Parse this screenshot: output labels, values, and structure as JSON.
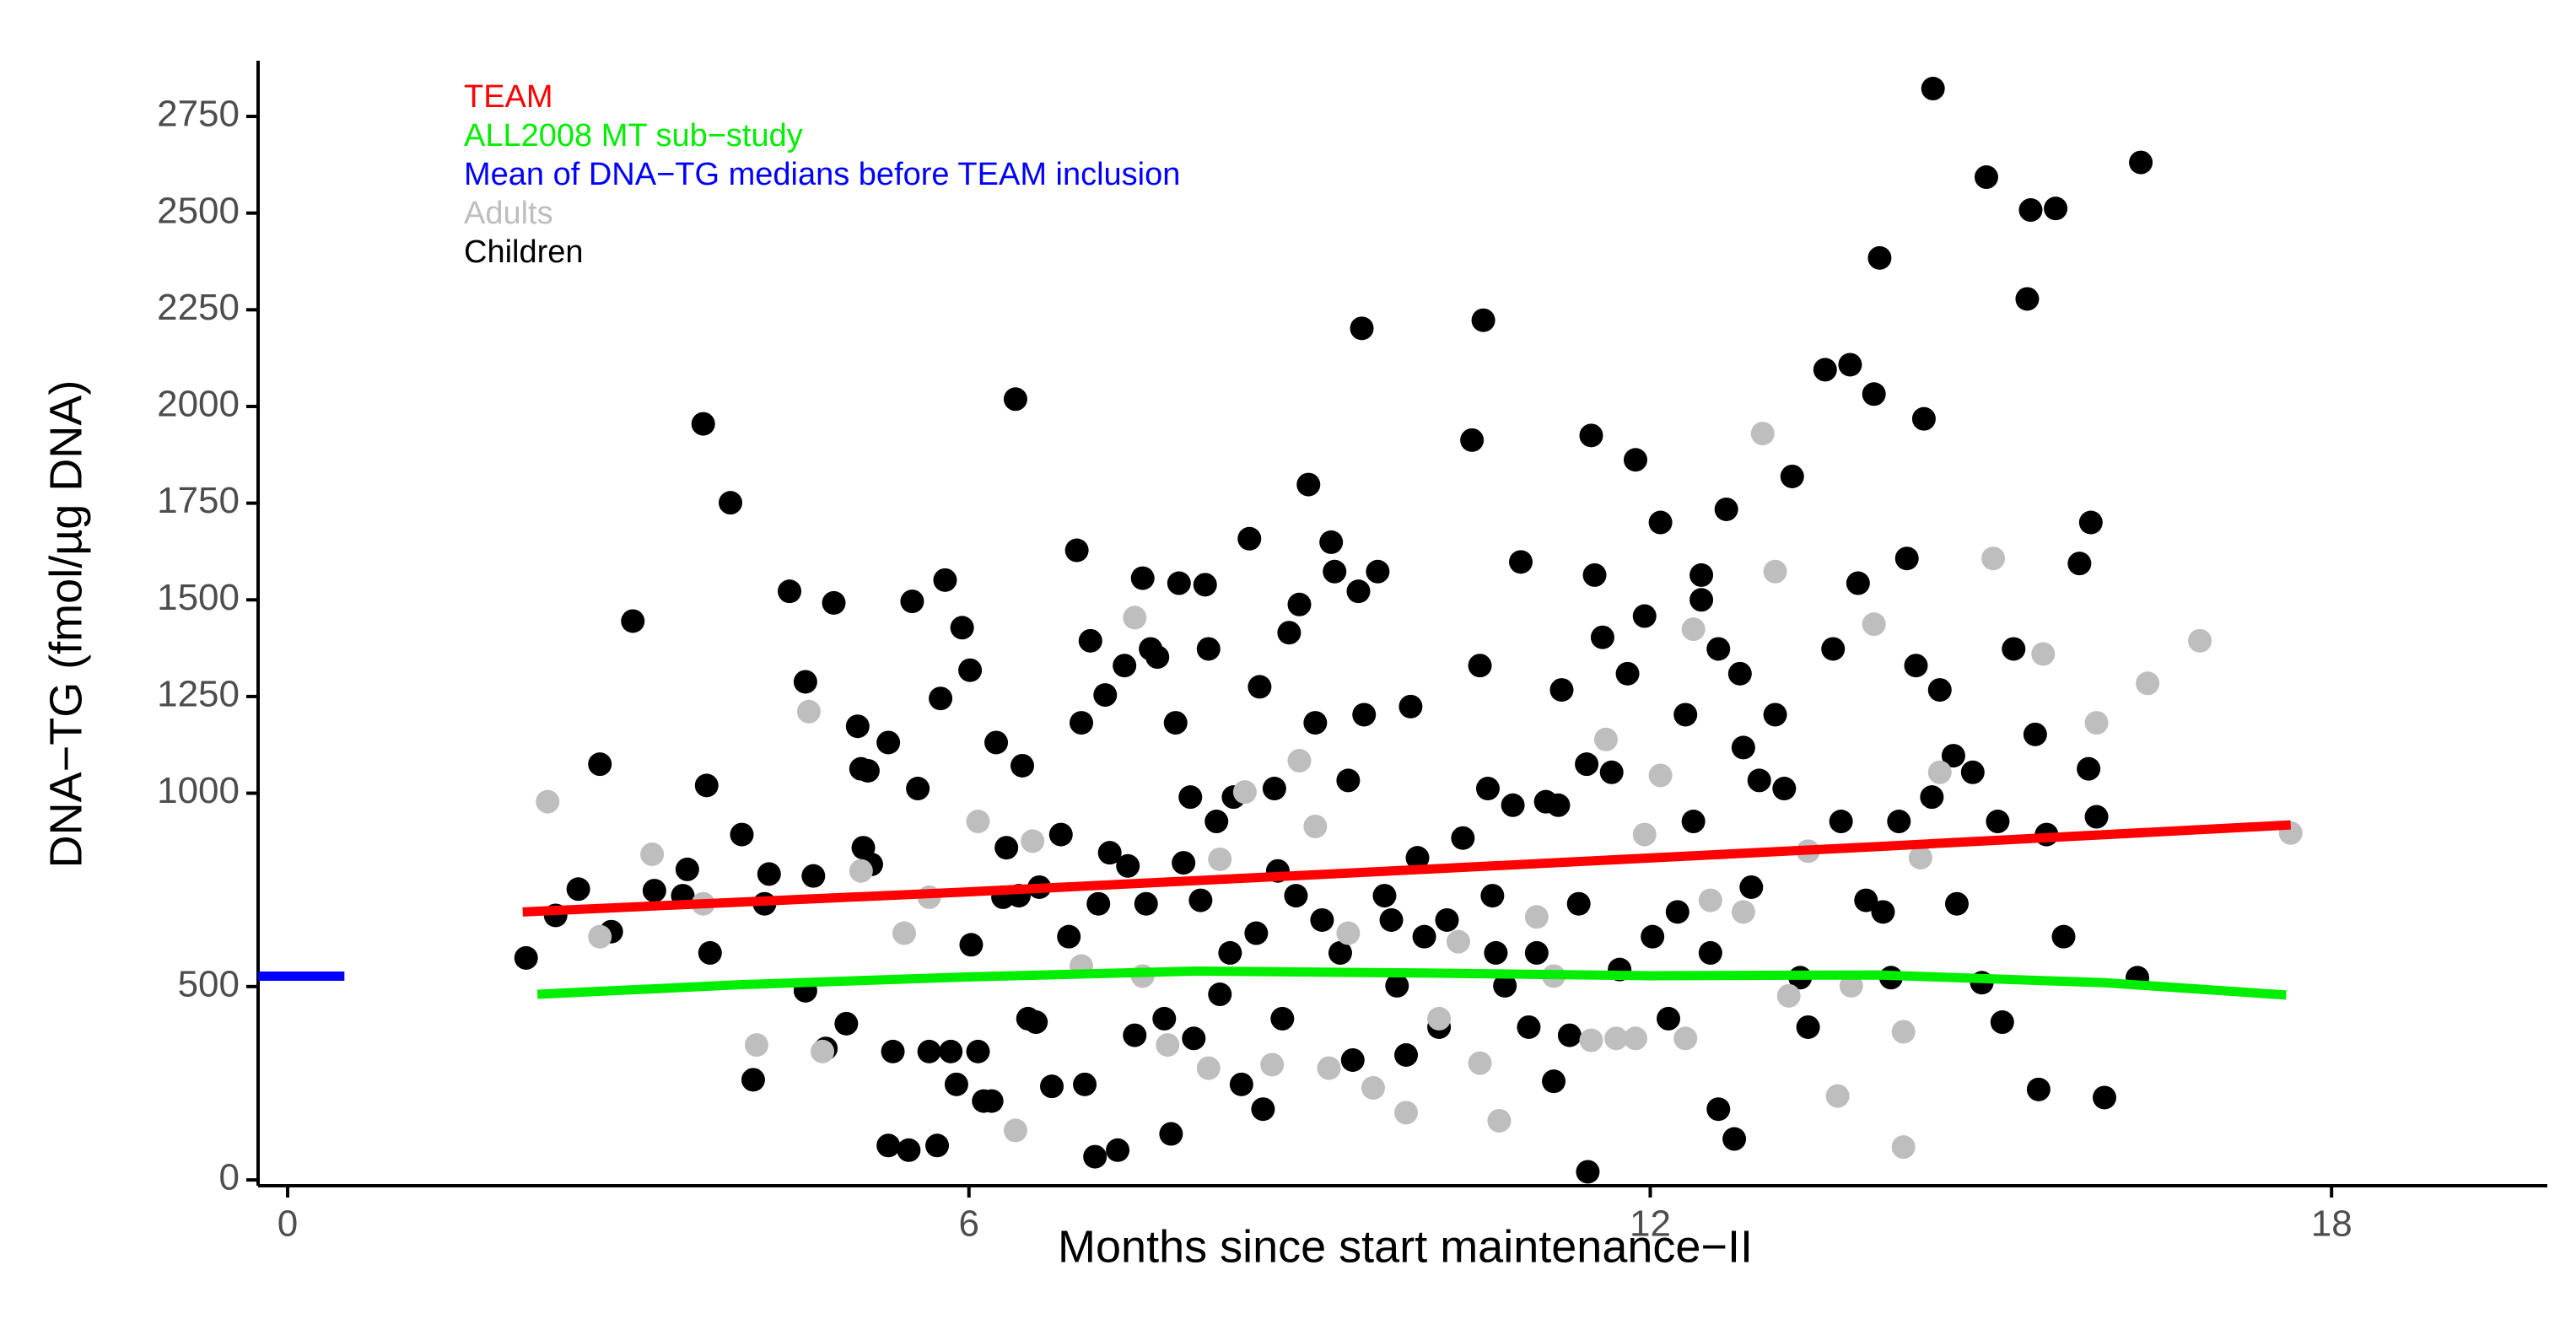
{
  "chart_data": {
    "type": "scatter",
    "xlabel": "Months since start maintenance−II",
    "ylabel": "DNA−TG (fmol/µg DNA)",
    "xlim": [
      -0.26,
      19.9
    ],
    "ylim": [
      -15,
      2894
    ],
    "xticks": [
      0,
      6,
      12,
      18
    ],
    "yticks": [
      0,
      500,
      1000,
      1250,
      1500,
      1750,
      2000,
      2250,
      2500,
      2750
    ],
    "legend": "top-left",
    "series": [
      {
        "name": "Children",
        "color": "#000000",
        "mode": "points",
        "x": [
          2.1,
          2.36,
          2.56,
          2.75,
          2.85,
          3.04,
          3.23,
          3.48,
          3.52,
          3.66,
          3.69,
          3.72,
          3.9,
          4.0,
          4.1,
          4.2,
          4.24,
          4.42,
          4.56,
          4.56,
          4.63,
          4.74,
          4.81,
          4.92,
          5.02,
          5.05,
          5.07,
          5.11,
          5.14,
          5.29,
          5.29,
          5.33,
          5.47,
          5.5,
          5.55,
          5.65,
          5.72,
          5.75,
          5.79,
          5.84,
          5.89,
          5.94,
          6.01,
          6.02,
          6.08,
          6.13,
          6.2,
          6.24,
          6.3,
          6.33,
          6.41,
          6.44,
          6.47,
          6.52,
          6.59,
          6.62,
          6.73,
          6.81,
          6.88,
          6.95,
          6.99,
          7.02,
          7.07,
          7.11,
          7.14,
          7.2,
          7.24,
          7.31,
          7.37,
          7.4,
          7.46,
          7.53,
          7.56,
          7.6,
          7.66,
          7.72,
          7.78,
          7.82,
          7.85,
          7.89,
          7.95,
          7.98,
          8.04,
          8.08,
          8.11,
          8.18,
          8.21,
          8.3,
          8.33,
          8.4,
          8.47,
          8.53,
          8.56,
          8.59,
          8.69,
          8.72,
          8.76,
          8.82,
          8.88,
          8.91,
          8.99,
          9.05,
          9.11,
          9.19,
          9.22,
          9.27,
          9.34,
          9.38,
          9.43,
          9.46,
          9.48,
          9.6,
          9.66,
          9.72,
          9.77,
          9.85,
          9.89,
          9.95,
          10.01,
          10.14,
          10.21,
          10.35,
          10.43,
          10.5,
          10.53,
          10.57,
          10.61,
          10.64,
          10.72,
          10.79,
          10.86,
          10.93,
          11.0,
          11.08,
          11.15,
          11.19,
          11.22,
          11.29,
          11.37,
          11.44,
          11.45,
          11.48,
          11.51,
          11.58,
          11.66,
          11.73,
          11.8,
          11.87,
          11.95,
          12.02,
          12.09,
          12.16,
          12.24,
          12.31,
          12.38,
          12.45,
          12.53,
          12.6,
          12.67,
          12.74,
          12.79,
          12.89,
          12.96,
          13.1,
          13.18,
          13.25,
          13.32,
          13.39,
          13.54,
          13.61,
          13.68,
          13.76,
          13.83,
          13.9,
          13.97,
          14.02,
          14.05,
          14.12,
          14.19,
          14.26,
          14.34,
          14.41,
          14.48,
          14.49,
          14.55,
          14.67,
          14.7,
          14.84,
          14.92,
          14.96,
          15.06,
          15.1,
          15.2,
          15.32,
          15.35,
          15.39,
          15.42,
          15.49,
          15.57,
          15.64,
          15.78,
          15.86,
          15.88,
          15.93,
          16.0,
          16.29,
          16.32,
          12.45,
          12.6,
          12.82
        ],
        "values": [
          574,
          684,
          752,
          1075,
          642,
          1445,
          748,
          735,
          803,
          1955,
          1020,
          587,
          1751,
          893,
          259,
          714,
          791,
          1522,
          1288,
          489,
          786,
          340,
          1492,
          404,
          1173,
          1063,
          859,
          1058,
          816,
          1131,
          89,
          332,
          77,
          1496,
          1012,
          332,
          89,
          1245,
          1551,
          332,
          247,
          1428,
          1318,
          608,
          332,
          204,
          204,
          1131,
          731,
          859,
          2019,
          735,
          1071,
          417,
          408,
          757,
          242,
          893,
          629,
          1628,
          1182,
          247,
          1394,
          60,
          714,
          1254,
          846,
          77,
          1330,
          812,
          374,
          1556,
          714,
          1373,
          1352,
          417,
          119,
          1182,
          1543,
          820,
          990,
          366,
          723,
          1539,
          1373,
          927,
          480,
          587,
          990,
          247,
          1658,
          638,
          1275,
          183,
          1012,
          799,
          417,
          1415,
          735,
          1488,
          1798,
          1182,
          672,
          1649,
          1573,
          587,
          1033,
          310,
          1522,
          2202,
          1203,
          1573,
          735,
          672,
          502,
          323,
          1224,
          833,
          629,
          395,
          672,
          884,
          1913,
          1330,
          2223,
          1012,
          735,
          587,
          502,
          969,
          1598,
          395,
          587,
          978,
          255,
          969,
          1267,
          374,
          714,
          1075,
          21,
          1925,
          1564,
          1403,
          1054,
          544,
          1309,
          1862,
          1458,
          629,
          1700,
          417,
          693,
          1203,
          927,
          1564,
          587,
          183,
          1734,
          106,
          1309,
          757,
          1033,
          1203,
          1012,
          1819,
          523,
          395,
          2095,
          1373,
          927,
          2108,
          1543,
          723,
          2032,
          2384,
          693,
          523,
          927,
          1607,
          1330,
          1968,
          990,
          2822,
          1267,
          1097,
          714,
          1054,
          510,
          2593,
          927,
          408,
          1373,
          2278,
          2508,
          1152,
          234,
          893,
          2512,
          629,
          1594,
          1063,
          1700,
          939,
          213,
          523,
          2631,
          1500,
          1373,
          1118
        ]
      },
      {
        "name": "Adults",
        "color": "#bebebe",
        "mode": "points",
        "x": [
          2.29,
          2.75,
          3.21,
          3.66,
          4.13,
          4.59,
          4.71,
          5.05,
          5.43,
          5.65,
          6.08,
          6.41,
          6.56,
          6.99,
          7.46,
          7.53,
          7.75,
          8.11,
          8.21,
          8.43,
          8.67,
          8.91,
          9.05,
          9.17,
          9.34,
          9.56,
          9.85,
          10.14,
          10.31,
          10.5,
          10.67,
          11.0,
          11.15,
          11.48,
          11.61,
          11.7,
          11.87,
          11.95,
          12.09,
          12.31,
          12.38,
          12.53,
          12.82,
          12.99,
          13.1,
          13.22,
          13.39,
          13.65,
          13.97,
          14.23,
          14.38,
          14.55,
          15.02,
          15.46,
          15.93,
          16.38,
          16.84,
          17.64,
          13.77,
          14.23
        ],
        "values": [
          978,
          629,
          842,
          714,
          349,
          1211,
          332,
          799,
          638,
          731,
          927,
          128,
          876,
          553,
          1454,
          527,
          349,
          289,
          829,
          1003,
          298,
          1084,
          914,
          289,
          638,
          238,
          174,
          417,
          616,
          302,
          153,
          680,
          527,
          361,
          1139,
          366,
          366,
          893,
          1046,
          366,
          1424,
          723,
          693,
          1930,
          1573,
          476,
          850,
          217,
          1437,
          85,
          833,
          1054,
          1607,
          1360,
          1182,
          1284,
          1394,
          897,
          502,
          383
        ]
      },
      {
        "name": "TEAM",
        "color": "#ff0000",
        "mode": "line",
        "x": [
          2.07,
          6,
          10,
          14,
          17.64
        ],
        "values": [
          693,
          745,
          803,
          862,
          918
        ]
      },
      {
        "name": "ALL2008 MT sub−study",
        "color": "#00ee00",
        "mode": "line",
        "x": [
          2.2,
          4,
          6,
          8,
          10,
          12,
          14,
          16,
          17.6
        ],
        "values": [
          480,
          505,
          525,
          540,
          535,
          528,
          530,
          510,
          478
        ]
      },
      {
        "name": "Mean of DNA−TG medians before TEAM inclusion",
        "color": "#0000ff",
        "mode": "line",
        "x": [
          -0.26,
          0.5
        ],
        "values": [
          527,
          527
        ]
      }
    ],
    "legend_order": [
      2,
      3,
      4,
      1,
      0
    ]
  }
}
